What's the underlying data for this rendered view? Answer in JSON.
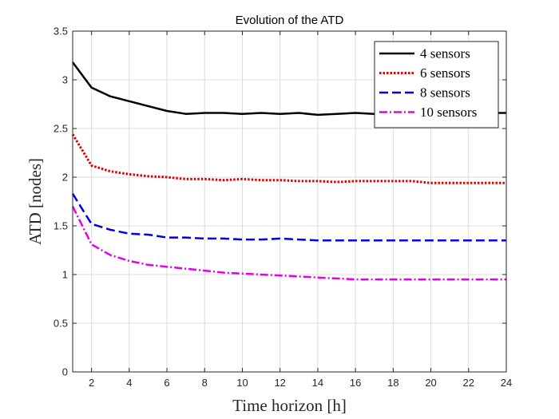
{
  "chart_data": {
    "type": "line",
    "title": "Evolution of the ATD",
    "xlabel": "Time horizon [h]",
    "ylabel": "ATD [nodes]",
    "xlim": [
      1,
      24
    ],
    "ylim": [
      0,
      3.5
    ],
    "xticks": [
      2,
      4,
      6,
      8,
      10,
      12,
      14,
      16,
      18,
      20,
      22,
      24
    ],
    "yticks": [
      0,
      0.5,
      1,
      1.5,
      2,
      2.5,
      3,
      3.5
    ],
    "ytick_labels": [
      "0",
      "0.5",
      "1",
      "1.5",
      "2",
      "2.5",
      "3",
      "3.5"
    ],
    "grid": true,
    "legend_position": "top-right",
    "x": [
      1,
      2,
      3,
      4,
      5,
      6,
      7,
      8,
      9,
      10,
      11,
      12,
      13,
      14,
      15,
      16,
      17,
      18,
      19,
      20,
      21,
      22,
      23,
      24
    ],
    "series": [
      {
        "name": "4 sensors",
        "color": "#000000",
        "style": "solid",
        "values": [
          3.18,
          2.92,
          2.83,
          2.78,
          2.73,
          2.68,
          2.65,
          2.66,
          2.66,
          2.65,
          2.66,
          2.65,
          2.66,
          2.64,
          2.65,
          2.66,
          2.65,
          2.65,
          2.66,
          2.66,
          2.66,
          2.66,
          2.66,
          2.66
        ]
      },
      {
        "name": "6 sensors",
        "color": "#e00000",
        "style": "dotted",
        "values": [
          2.44,
          2.12,
          2.06,
          2.03,
          2.01,
          2.0,
          1.98,
          1.98,
          1.97,
          1.98,
          1.97,
          1.97,
          1.96,
          1.96,
          1.95,
          1.96,
          1.96,
          1.96,
          1.96,
          1.94,
          1.94,
          1.94,
          1.94,
          1.94
        ]
      },
      {
        "name": "8 sensors",
        "color": "#0000e0",
        "style": "dashed",
        "values": [
          1.83,
          1.52,
          1.46,
          1.42,
          1.41,
          1.38,
          1.38,
          1.37,
          1.37,
          1.36,
          1.36,
          1.37,
          1.36,
          1.35,
          1.35,
          1.35,
          1.35,
          1.35,
          1.35,
          1.35,
          1.35,
          1.35,
          1.35,
          1.35
        ]
      },
      {
        "name": "10 sensors",
        "color": "#e600e6",
        "style": "dashdot",
        "values": [
          1.7,
          1.31,
          1.2,
          1.14,
          1.1,
          1.08,
          1.06,
          1.04,
          1.02,
          1.01,
          1.0,
          0.99,
          0.98,
          0.97,
          0.96,
          0.95,
          0.95,
          0.95,
          0.95,
          0.95,
          0.95,
          0.95,
          0.95,
          0.95
        ]
      }
    ]
  }
}
